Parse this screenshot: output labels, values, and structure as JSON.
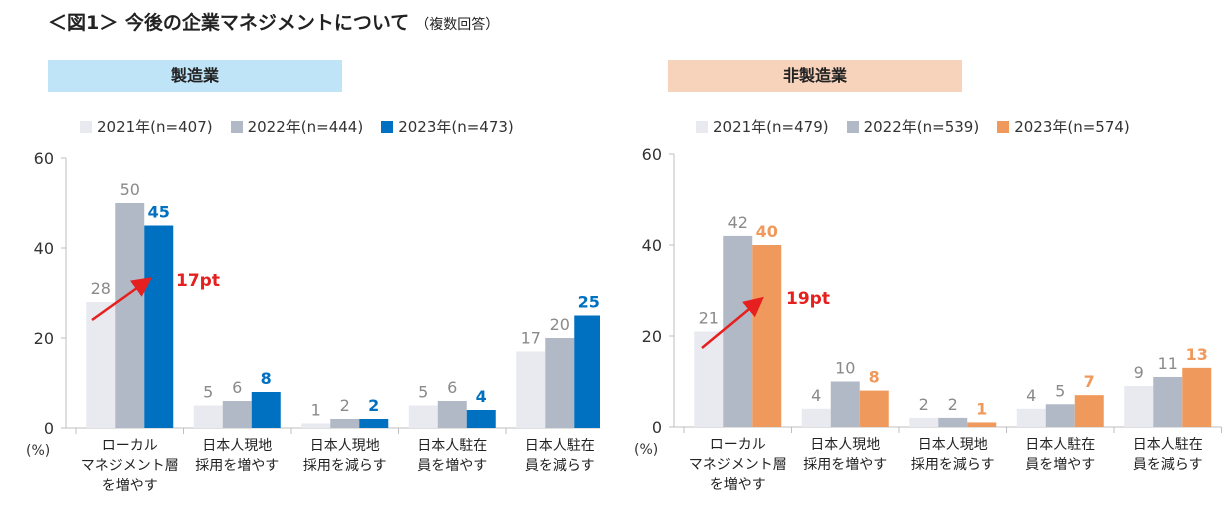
{
  "title": "＜図1＞ 今後の企業マネジメントについて",
  "subtitle": "（複数回答）",
  "unit_label": "(%)",
  "chart_data": [
    {
      "type": "bar",
      "title": "製造業",
      "band_color": "#bfe3f7",
      "categories": [
        [
          "ローカル",
          "マネジメント層",
          "を増やす"
        ],
        [
          "日本人現地",
          "採用を増やす"
        ],
        [
          "日本人現地",
          "採用を減らす"
        ],
        [
          "日本人駐在",
          "員を増やす"
        ],
        [
          "日本人駐在",
          "員を減らす"
        ]
      ],
      "series": [
        {
          "name": "2021年(n=407)",
          "color": "#e8eaf0",
          "label_color": "#8a8a8a",
          "values": [
            28,
            5,
            1,
            5,
            17
          ]
        },
        {
          "name": "2022年(n=444)",
          "color": "#b2b9c6",
          "label_color": "#8a8a8a",
          "values": [
            50,
            6,
            2,
            6,
            20
          ]
        },
        {
          "name": "2023年(n=473)",
          "color": "#0070c0",
          "label_color": "#0070c0",
          "values": [
            45,
            8,
            2,
            4,
            25
          ]
        }
      ],
      "value_labels": [
        [
          "28",
          "50",
          "45"
        ],
        [
          "5",
          "6",
          "8"
        ],
        [
          "1",
          "2",
          "2"
        ],
        [
          "5",
          "6",
          "4"
        ],
        [
          "17",
          "20",
          "25"
        ]
      ],
      "ylim": [
        0,
        60
      ],
      "yticks": [
        0,
        20,
        40,
        60
      ],
      "annotation": {
        "text": "17pt",
        "color": "#e5201f"
      }
    },
    {
      "type": "bar",
      "title": "非製造業",
      "band_color": "#f7d3bc",
      "categories": [
        [
          "ローカル",
          "マネジメント層",
          "を増やす"
        ],
        [
          "日本人現地",
          "採用を増やす"
        ],
        [
          "日本人現地",
          "採用を減らす"
        ],
        [
          "日本人駐在",
          "員を増やす"
        ],
        [
          "日本人駐在",
          "員を減らす"
        ]
      ],
      "series": [
        {
          "name": "2021年(n=479)",
          "color": "#e8eaf0",
          "label_color": "#8a8a8a",
          "values": [
            21,
            4,
            2,
            4,
            9
          ]
        },
        {
          "name": "2022年(n=539)",
          "color": "#b2b9c6",
          "label_color": "#8a8a8a",
          "values": [
            42,
            10,
            2,
            5,
            11
          ]
        },
        {
          "name": "2023年(n=574)",
          "color": "#ef9a5c",
          "label_color": "#ef9a5c",
          "values": [
            40,
            8,
            1,
            7,
            13
          ]
        }
      ],
      "value_labels": [
        [
          "21",
          "42",
          "40"
        ],
        [
          "4",
          "10",
          "8"
        ],
        [
          "2",
          "2",
          "1"
        ],
        [
          "4",
          "5",
          "7"
        ],
        [
          "9",
          "11",
          "13"
        ]
      ],
      "ylim": [
        0,
        60
      ],
      "yticks": [
        0,
        20,
        40,
        60
      ],
      "annotation": {
        "text": "19pt",
        "color": "#e5201f"
      }
    }
  ]
}
